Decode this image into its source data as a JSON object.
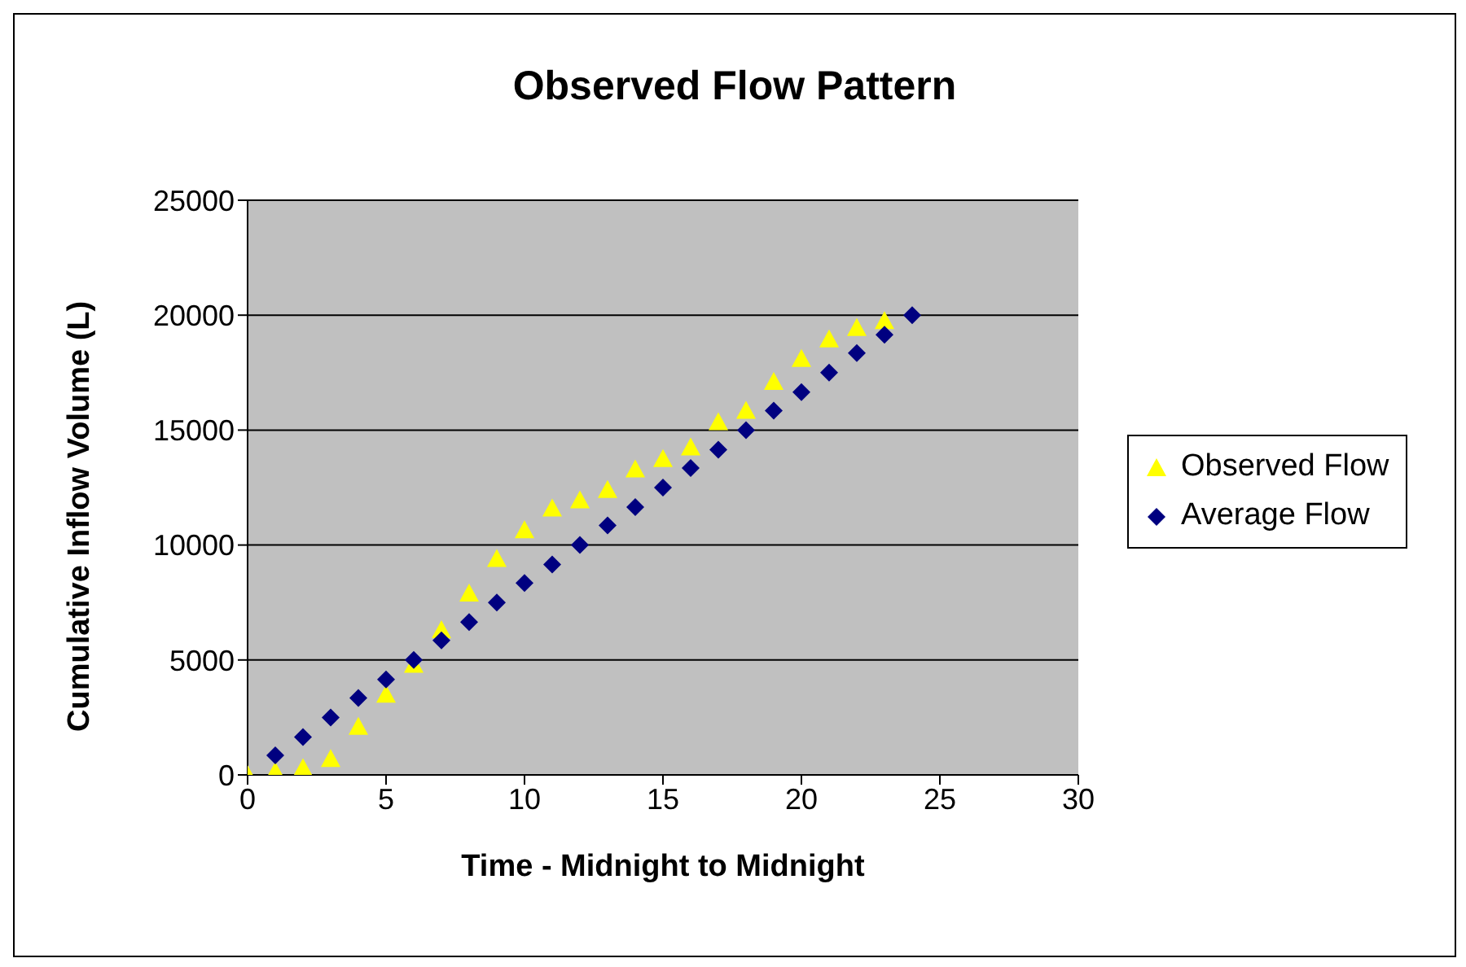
{
  "chart_data": {
    "type": "scatter",
    "title": "Observed Flow Pattern",
    "xlabel": "Time - Midnight to Midnight",
    "ylabel": "Cumulative Inflow Volume (L)",
    "x": [
      0,
      1,
      2,
      3,
      4,
      5,
      6,
      7,
      8,
      9,
      10,
      11,
      12,
      13,
      14,
      15,
      16,
      17,
      18,
      19,
      20,
      21,
      22,
      23,
      24
    ],
    "series": [
      {
        "name": "Observed Flow",
        "color": "#ffff00",
        "marker": "triangle",
        "values": [
          0,
          150,
          300,
          700,
          2100,
          3500,
          4800,
          6300,
          7900,
          9400,
          10650,
          11600,
          11950,
          12400,
          13300,
          13750,
          14250,
          15350,
          15850,
          17100,
          18100,
          18950,
          19450,
          19750,
          null
        ]
      },
      {
        "name": "Average Flow",
        "color": "#000080",
        "marker": "diamond",
        "values": [
          null,
          850,
          1650,
          2500,
          3350,
          4150,
          5000,
          5850,
          6650,
          7500,
          8350,
          9150,
          10000,
          10850,
          11650,
          12500,
          13350,
          14150,
          15000,
          15850,
          16650,
          17500,
          18350,
          19150,
          20000
        ]
      }
    ],
    "xlim": [
      0,
      30
    ],
    "xticks": [
      0,
      5,
      10,
      15,
      20,
      25,
      30
    ],
    "ylim": [
      0,
      25000
    ],
    "yticks": [
      0,
      5000,
      10000,
      15000,
      20000,
      25000
    ],
    "grid": "y",
    "legend": "right"
  }
}
